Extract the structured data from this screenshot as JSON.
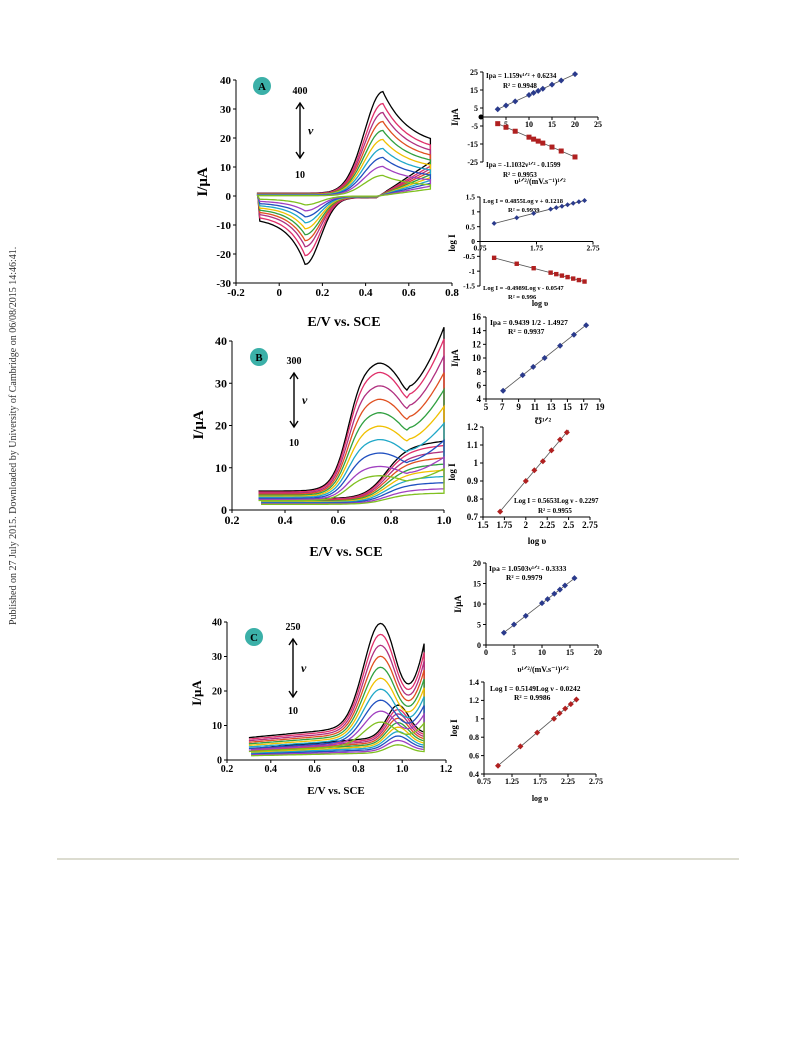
{
  "side_note": "Published on 27 July 2015. Downloaded by University of Cambridge on 06/08/2015 14:46:41.",
  "colors": {
    "cv_palette": [
      "#000000",
      "#e0306a",
      "#b03080",
      "#e05020",
      "#30a040",
      "#f0c000",
      "#20a8c8",
      "#2050c0",
      "#a040c0",
      "#80c020"
    ],
    "inset_blue": "#2a3a8c",
    "inset_red": "#b02020",
    "badge": "#3bb0a8"
  },
  "panels": {
    "A": {
      "badge": "A",
      "arrow_top": "400",
      "arrow_bottom": "10",
      "arrow_label": "ν",
      "xlabel": "E/V vs. SCE",
      "ylabel": "I/μA",
      "xticks": [
        "-0.2",
        "0",
        "0.2",
        "0.4",
        "0.6",
        "0.8"
      ],
      "yticks": [
        "40",
        "30",
        "20",
        "10",
        "0",
        "-10",
        "-20",
        "-30"
      ],
      "inset1": {
        "eq_top": "Ipa = 1.159ν¹ᐟ² + 0.6234",
        "r2_top": "R² = 0.9948",
        "eq_bottom": "Ipa = -1.1032ν¹ᐟ² - 0.1599",
        "r2_bottom": "R² = 0.9953",
        "xlabel": "υ¹ᐟ²/(mV.s⁻¹)¹ᐟ²",
        "ylabel": "I/μA",
        "yticks": [
          "25",
          "15",
          "5",
          "-5",
          "-15",
          "-25"
        ],
        "xticks": [
          "5",
          "10",
          "15",
          "20",
          "25"
        ]
      },
      "inset2": {
        "eq_top": "Log I = 0.4855Log ν + 0.1218",
        "r2_top": "R² = 0.9939",
        "eq_bottom": "Log I = -0.4989Log ν - 0.0547",
        "r2_bottom": "R² = 0.996",
        "xlabel": "log υ",
        "ylabel": "log I",
        "yticks": [
          "1.5",
          "1",
          "0.5",
          "0",
          "-0.5",
          "-1",
          "-1.5"
        ],
        "xticks": [
          "0.75",
          "1.75",
          "2.75"
        ]
      }
    },
    "B": {
      "badge": "B",
      "arrow_top": "300",
      "arrow_bottom": "10",
      "arrow_label": "ν",
      "xlabel": "E/V vs. SCE",
      "ylabel": "I/μA",
      "xticks": [
        "0.2",
        "0.4",
        "0.6",
        "0.8",
        "1.0"
      ],
      "yticks": [
        "40",
        "30",
        "20",
        "10",
        "0"
      ],
      "inset1": {
        "eq": "Ipa = 0.9439 1/2 - 1.4927",
        "r2": "R² = 0.9937",
        "xlabel": "Ʊ¹ᐟ²",
        "ylabel": "I/μA",
        "yticks": [
          "16",
          "14",
          "12",
          "10",
          "8",
          "6",
          "4"
        ],
        "xticks": [
          "5",
          "7",
          "9",
          "11",
          "13",
          "15",
          "17",
          "19"
        ]
      },
      "inset2": {
        "eq": "Log I = 0.5653Log ν - 0.2297",
        "r2": "R² = 0.9955",
        "xlabel": "log υ",
        "ylabel": "log I",
        "yticks": [
          "1.2",
          "1.1",
          "1",
          "0.9",
          "0.8",
          "0.7"
        ],
        "xticks": [
          "1.5",
          "1.75",
          "2",
          "2.25",
          "2.5",
          "2.75"
        ]
      }
    },
    "C": {
      "badge": "C",
      "arrow_top": "250",
      "arrow_bottom": "10",
      "arrow_label": "ν",
      "xlabel": "E/V vs. SCE",
      "ylabel": "I/μA",
      "xticks": [
        "0.2",
        "0.4",
        "0.6",
        "0.8",
        "1.0",
        "1.2"
      ],
      "yticks": [
        "40",
        "30",
        "20",
        "10",
        "0"
      ],
      "inset1": {
        "eq": "Ipa = 1.0503ν¹ᐟ² - 0.3333",
        "r2": "R² = 0.9979",
        "xlabel": "υ¹ᐟ²/(mV.s⁻¹)¹ᐟ²",
        "ylabel": "I/μA",
        "yticks": [
          "20",
          "15",
          "10",
          "5",
          "0"
        ],
        "xticks": [
          "0",
          "5",
          "10",
          "15",
          "20"
        ]
      },
      "inset2": {
        "eq": "Log I = 0.5149Log ν - 0.0242",
        "r2": "R² = 0.9986",
        "xlabel": "log υ",
        "ylabel": "log I",
        "yticks": [
          "1.4",
          "1.2",
          "1",
          "0.8",
          "0.6",
          "0.4"
        ],
        "xticks": [
          "0.75",
          "1.25",
          "1.75",
          "2.25",
          "2.75"
        ]
      }
    }
  },
  "chart_data": [
    {
      "type": "line",
      "panel": "A",
      "xlabel": "E/V vs. SCE",
      "ylabel": "I/μA",
      "xlim": [
        -0.2,
        0.8
      ],
      "ylim": [
        -30,
        40
      ],
      "scan_rates_range": [
        10,
        400
      ],
      "anodic_peak_potential": 0.48,
      "cathodic_peak_potential": 0.12,
      "anodic_peak_currents": [
        35,
        31,
        28,
        25,
        22,
        19,
        16,
        13,
        10,
        7
      ],
      "cathodic_peak_currents": [
        -23,
        -20,
        -17,
        -15,
        -13,
        -11,
        -9,
        -7,
        -5,
        -3
      ]
    },
    {
      "type": "scatter",
      "panel": "A-inset1",
      "xlabel": "υ¹ᐟ²/(mV.s⁻¹)¹ᐟ²",
      "ylabel": "I/μA",
      "xlim": [
        0,
        25
      ],
      "ylim": [
        -25,
        25
      ],
      "series": [
        {
          "name": "Ipa",
          "x": [
            3.2,
            5,
            7,
            10,
            11,
            12,
            13,
            15,
            17,
            20
          ],
          "y": [
            4.3,
            6.4,
            8.7,
            12.2,
            13.4,
            14.5,
            15.7,
            18.0,
            20.3,
            23.8
          ]
        },
        {
          "name": "Ipc",
          "x": [
            3.2,
            5,
            7,
            10,
            11,
            12,
            13,
            15,
            17,
            20
          ],
          "y": [
            -3.7,
            -5.7,
            -7.9,
            -11.2,
            -12.3,
            -13.4,
            -14.5,
            -16.7,
            -18.9,
            -22.2
          ]
        }
      ]
    },
    {
      "type": "scatter",
      "panel": "A-inset2",
      "xlabel": "log υ",
      "ylabel": "log I",
      "xlim": [
        0.75,
        2.75
      ],
      "ylim": [
        -1.5,
        1.5
      ],
      "series": [
        {
          "name": "anodic",
          "x": [
            1.0,
            1.4,
            1.7,
            2.0,
            2.1,
            2.2,
            2.3,
            2.4,
            2.5,
            2.6
          ],
          "y": [
            0.61,
            0.8,
            0.95,
            1.09,
            1.14,
            1.19,
            1.24,
            1.29,
            1.34,
            1.38
          ]
        },
        {
          "name": "cathodic",
          "x": [
            1.0,
            1.4,
            1.7,
            2.0,
            2.1,
            2.2,
            2.3,
            2.4,
            2.5,
            2.6
          ],
          "y": [
            -0.55,
            -0.75,
            -0.9,
            -1.05,
            -1.1,
            -1.15,
            -1.2,
            -1.25,
            -1.3,
            -1.35
          ]
        }
      ]
    },
    {
      "type": "line",
      "panel": "B",
      "xlabel": "E/V vs. SCE",
      "ylabel": "I/μA",
      "xlim": [
        0.2,
        1.0
      ],
      "ylim": [
        0,
        40
      ],
      "scan_rates_range": [
        10,
        300
      ],
      "peak_potential": 0.75,
      "peak_currents": [
        31,
        29,
        26,
        23,
        20,
        17,
        14,
        11,
        8,
        6
      ]
    },
    {
      "type": "scatter",
      "panel": "B-inset1",
      "xlabel": "Ʊ¹ᐟ²",
      "ylabel": "I/μA",
      "xlim": [
        5,
        19
      ],
      "ylim": [
        4,
        16
      ],
      "series": [
        {
          "name": "Ipa",
          "x": [
            7.1,
            9.5,
            10.8,
            12.2,
            14.1,
            15.8,
            17.3
          ],
          "y": [
            5.2,
            7.5,
            8.7,
            10.0,
            11.8,
            13.4,
            14.8
          ]
        }
      ]
    },
    {
      "type": "scatter",
      "panel": "B-inset2",
      "xlabel": "log υ",
      "ylabel": "log I",
      "xlim": [
        1.5,
        2.75
      ],
      "ylim": [
        0.7,
        1.2
      ],
      "series": [
        {
          "name": "log I",
          "x": [
            1.7,
            2.0,
            2.1,
            2.2,
            2.3,
            2.4,
            2.48
          ],
          "y": [
            0.73,
            0.9,
            0.96,
            1.01,
            1.07,
            1.13,
            1.17
          ]
        }
      ]
    },
    {
      "type": "line",
      "panel": "C",
      "xlabel": "E/V vs. SCE",
      "ylabel": "I/μA",
      "xlim": [
        0.2,
        1.2
      ],
      "ylim": [
        0,
        40
      ],
      "scan_rates_range": [
        10,
        250
      ],
      "peak_potential": 0.9,
      "peak_currents": [
        36,
        33,
        30,
        27,
        24,
        21,
        18,
        15,
        12,
        9
      ]
    },
    {
      "type": "scatter",
      "panel": "C-inset1",
      "xlabel": "υ¹ᐟ²/(mV.s⁻¹)¹ᐟ²",
      "ylabel": "I/μA",
      "xlim": [
        0,
        20
      ],
      "ylim": [
        0,
        20
      ],
      "series": [
        {
          "name": "Ipa",
          "x": [
            3.2,
            5,
            7.1,
            10,
            11,
            12.2,
            13.2,
            14.1,
            15.8
          ],
          "y": [
            3.0,
            5.0,
            7.1,
            10.2,
            11.2,
            12.5,
            13.5,
            14.5,
            16.3
          ]
        }
      ]
    },
    {
      "type": "scatter",
      "panel": "C-inset2",
      "xlabel": "log υ",
      "ylabel": "log I",
      "xlim": [
        0.75,
        2.75
      ],
      "ylim": [
        0.4,
        1.4
      ],
      "series": [
        {
          "name": "log I",
          "x": [
            1.0,
            1.4,
            1.7,
            2.0,
            2.1,
            2.2,
            2.3,
            2.4
          ],
          "y": [
            0.49,
            0.7,
            0.85,
            1.0,
            1.06,
            1.11,
            1.16,
            1.21
          ]
        }
      ]
    }
  ]
}
